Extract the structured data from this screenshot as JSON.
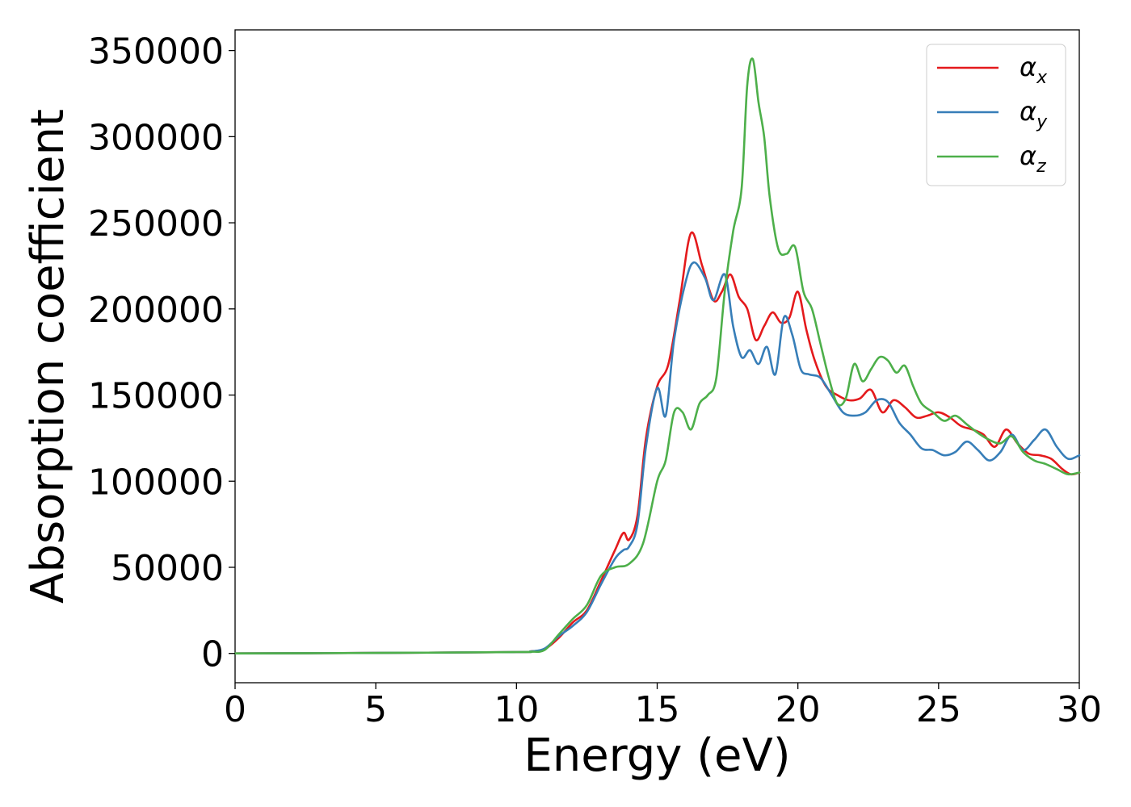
{
  "chart_data": {
    "type": "line",
    "xlabel": "Energy (eV)",
    "ylabel": "Absorption coefficient",
    "xlim": [
      0,
      30
    ],
    "ylim": [
      -17000,
      362000
    ],
    "xticks": [
      0,
      5,
      10,
      15,
      20,
      25,
      30
    ],
    "yticks": [
      0,
      50000,
      100000,
      150000,
      200000,
      250000,
      300000,
      350000
    ],
    "grid": false,
    "legend_position": "top-right",
    "series": [
      {
        "name": "αx",
        "base": "α",
        "sub": "x",
        "color": "#e41a1c",
        "x": [
          0,
          5,
          10,
          10.5,
          11,
          11.5,
          12,
          12.5,
          13,
          13.5,
          13.8,
          14,
          14.3,
          14.6,
          15,
          15.4,
          15.8,
          16.2,
          16.6,
          17,
          17.3,
          17.6,
          17.9,
          18.2,
          18.5,
          18.8,
          19.1,
          19.4,
          19.7,
          20,
          20.3,
          20.6,
          21,
          21.4,
          21.8,
          22.2,
          22.6,
          23,
          23.4,
          23.8,
          24.2,
          24.6,
          25,
          25.4,
          25.8,
          26.2,
          26.6,
          27,
          27.4,
          27.8,
          28.2,
          28.6,
          29,
          29.4,
          29.7,
          30
        ],
        "y": [
          0,
          300,
          800,
          1200,
          2500,
          9000,
          18000,
          25000,
          42000,
          60000,
          70000,
          66000,
          80000,
          125000,
          155000,
          168000,
          205000,
          244000,
          225000,
          205000,
          210000,
          220000,
          207000,
          200000,
          182000,
          190000,
          198000,
          192000,
          195000,
          210000,
          188000,
          170000,
          155000,
          150000,
          147000,
          148000,
          153000,
          140000,
          147000,
          143000,
          137000,
          138000,
          140000,
          137000,
          132000,
          130000,
          127000,
          120000,
          130000,
          122000,
          116000,
          115000,
          113000,
          107000,
          104000,
          105000
        ]
      },
      {
        "name": "αy",
        "base": "α",
        "sub": "y",
        "color": "#377eb8",
        "x": [
          0,
          5,
          10,
          10.5,
          11,
          11.5,
          12,
          12.5,
          13,
          13.5,
          13.8,
          14,
          14.3,
          14.6,
          15,
          15.3,
          15.6,
          16,
          16.3,
          16.7,
          17,
          17.4,
          17.7,
          18,
          18.3,
          18.6,
          18.9,
          19.2,
          19.5,
          19.8,
          20.1,
          20.4,
          20.8,
          21.2,
          21.6,
          22,
          22.4,
          22.8,
          23.2,
          23.6,
          24,
          24.4,
          24.8,
          25.2,
          25.6,
          26,
          26.4,
          26.8,
          27.2,
          27.6,
          28,
          28.4,
          28.8,
          29.2,
          29.6,
          30
        ],
        "y": [
          0,
          300,
          800,
          1200,
          2800,
          10000,
          16000,
          24000,
          40000,
          55000,
          60000,
          62000,
          75000,
          120000,
          154000,
          138000,
          182000,
          215000,
          227000,
          218000,
          205000,
          220000,
          190000,
          172000,
          176000,
          168000,
          178000,
          162000,
          195000,
          185000,
          165000,
          162000,
          160000,
          150000,
          140000,
          138000,
          140000,
          147000,
          146000,
          134000,
          127000,
          119000,
          118000,
          115000,
          117000,
          123000,
          118000,
          112000,
          117000,
          127000,
          118000,
          124000,
          130000,
          120000,
          113000,
          115000
        ]
      },
      {
        "name": "αz",
        "base": "α",
        "sub": "z",
        "color": "#4daf4a",
        "x": [
          0,
          5,
          10,
          10.5,
          11,
          11.5,
          12,
          12.5,
          13,
          13.5,
          14,
          14.5,
          15,
          15.3,
          15.6,
          15.9,
          16.2,
          16.5,
          16.8,
          17.1,
          17.4,
          17.7,
          18,
          18.2,
          18.4,
          18.6,
          18.8,
          19,
          19.3,
          19.6,
          19.9,
          20.2,
          20.5,
          20.8,
          21.1,
          21.4,
          21.7,
          22,
          22.3,
          22.6,
          22.9,
          23.2,
          23.5,
          23.8,
          24.1,
          24.4,
          24.8,
          25.2,
          25.6,
          26,
          26.4,
          26.8,
          27.2,
          27.6,
          28,
          28.4,
          28.8,
          29.2,
          29.6,
          30
        ],
        "y": [
          0,
          300,
          800,
          1000,
          2000,
          11000,
          20000,
          28000,
          45000,
          50000,
          52000,
          64000,
          100000,
          112000,
          140000,
          140000,
          130000,
          145000,
          150000,
          160000,
          210000,
          245000,
          270000,
          330000,
          345000,
          320000,
          300000,
          265000,
          235000,
          232000,
          236000,
          210000,
          200000,
          180000,
          160000,
          145000,
          148000,
          168000,
          158000,
          165000,
          172000,
          170000,
          163000,
          167000,
          155000,
          145000,
          140000,
          135000,
          138000,
          133000,
          128000,
          124000,
          122000,
          126000,
          117000,
          112000,
          110000,
          107000,
          104000,
          105000
        ]
      }
    ]
  }
}
